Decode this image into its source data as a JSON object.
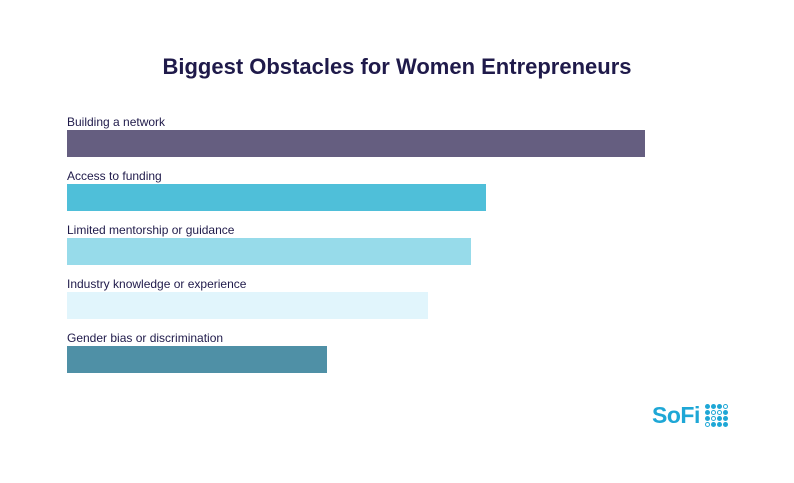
{
  "chart_data": {
    "type": "bar",
    "orientation": "horizontal",
    "title": "Biggest Obstacles for Women Entrepreneurs",
    "categories": [
      "Building a network",
      "Access to funding",
      "Limited mentorship or guidance",
      "Industry knowledge or experience",
      "Gender bias or discrimination"
    ],
    "values": [
      100,
      72.5,
      69.9,
      62.5,
      45
    ],
    "value_note": "relative lengths, no values printed",
    "colors": [
      "#655e80",
      "#4fbfd9",
      "#97dbea",
      "#e1f5fc",
      "#4f90a6"
    ],
    "grid": false,
    "xlim": [
      0,
      100
    ]
  },
  "brand": {
    "logo_text": "SoFi"
  }
}
